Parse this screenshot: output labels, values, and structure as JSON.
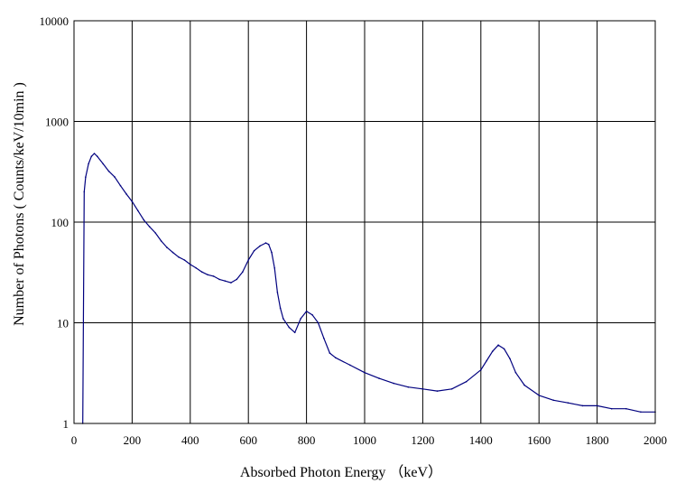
{
  "chart_data": {
    "type": "line",
    "title": "",
    "xlabel": "Absorbed Photon Energy （keV）",
    "ylabel": "Number  of Photons ( Counts/keV/10min )",
    "xlim": [
      0,
      2000
    ],
    "ylim": [
      1,
      10000
    ],
    "y_scale": "log",
    "grid": true,
    "legend": "none",
    "x_ticks": [
      "0",
      "200",
      "400",
      "600",
      "800",
      "1000",
      "1200",
      "1400",
      "1600",
      "1800",
      "2000"
    ],
    "y_ticks": [
      "1",
      "10",
      "100",
      "1000",
      "10000"
    ],
    "series": [
      {
        "color": "#00007f",
        "x": [
          30,
          35,
          40,
          50,
          60,
          70,
          80,
          100,
          120,
          140,
          160,
          180,
          200,
          220,
          240,
          260,
          280,
          300,
          320,
          340,
          360,
          380,
          400,
          420,
          440,
          460,
          480,
          500,
          520,
          540,
          560,
          580,
          600,
          620,
          640,
          660,
          670,
          680,
          690,
          700,
          710,
          720,
          740,
          760,
          780,
          800,
          820,
          840,
          860,
          880,
          900,
          950,
          1000,
          1050,
          1100,
          1150,
          1200,
          1250,
          1300,
          1350,
          1400,
          1420,
          1440,
          1460,
          1480,
          1500,
          1520,
          1550,
          1600,
          1650,
          1700,
          1750,
          1800,
          1850,
          1900,
          1950,
          2000
        ],
        "y": [
          1,
          200,
          280,
          380,
          450,
          480,
          450,
          380,
          320,
          280,
          230,
          190,
          160,
          130,
          105,
          90,
          78,
          65,
          56,
          50,
          45,
          42,
          38,
          35,
          32,
          30,
          29,
          27,
          26,
          25,
          27,
          32,
          42,
          52,
          58,
          62,
          60,
          50,
          35,
          20,
          14,
          11,
          9,
          8,
          11,
          13,
          12,
          10,
          7,
          5,
          4.5,
          3.8,
          3.2,
          2.8,
          2.5,
          2.3,
          2.2,
          2.1,
          2.2,
          2.6,
          3.4,
          4.2,
          5.2,
          6.0,
          5.5,
          4.4,
          3.2,
          2.4,
          1.9,
          1.7,
          1.6,
          1.5,
          1.5,
          1.4,
          1.4,
          1.3,
          1.3
        ]
      }
    ]
  }
}
